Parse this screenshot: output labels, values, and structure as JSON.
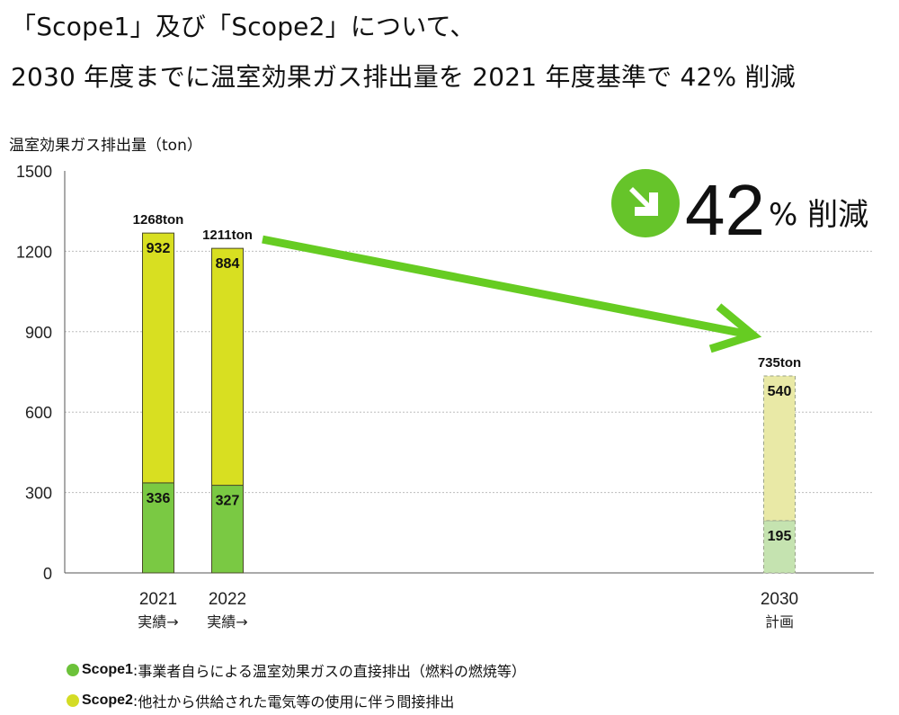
{
  "title": {
    "line1": "「Scope1」及び「Scope2」について、",
    "line2": "2030 年度までに温室効果ガス排出量を 2021 年度基準で 42% 削減"
  },
  "callout": {
    "number": "42",
    "unit": "% 削減",
    "icon": "arrow-down-right-icon",
    "color": "#66c42a"
  },
  "legend": [
    {
      "name": "Scope1",
      "separator": " : ",
      "desc": "事業者自らによる温室効果ガスの直接排出（燃料の燃焼等）",
      "color": "#6cc23a"
    },
    {
      "name": "Scope2",
      "separator": " : ",
      "desc": "他社から供給された電気等の使用に伴う間接排出",
      "color": "#d4dc25"
    }
  ],
  "chart_data": {
    "type": "bar",
    "stacked": true,
    "ylabel": "温室効果ガス排出量（ton）",
    "ylim": [
      0,
      1500
    ],
    "yticks": [
      0,
      300,
      600,
      900,
      1200,
      1500
    ],
    "grid": true,
    "categories": [
      {
        "year": "2021",
        "sub": "実績→",
        "total_label": "1268ton",
        "planned": false
      },
      {
        "year": "2022",
        "sub": "実績→",
        "total_label": "1211ton",
        "planned": false
      },
      {
        "year": "2030",
        "sub": "計画",
        "total_label": "735ton",
        "planned": true
      }
    ],
    "series": [
      {
        "name": "Scope1",
        "values": [
          336,
          327,
          195
        ],
        "color": "#7ac943",
        "planned_color": "#c5e3b0"
      },
      {
        "name": "Scope2",
        "values": [
          932,
          884,
          540
        ],
        "color": "#d8df21",
        "planned_color": "#e9e9a6"
      }
    ],
    "trend_color": "#66cc22"
  }
}
